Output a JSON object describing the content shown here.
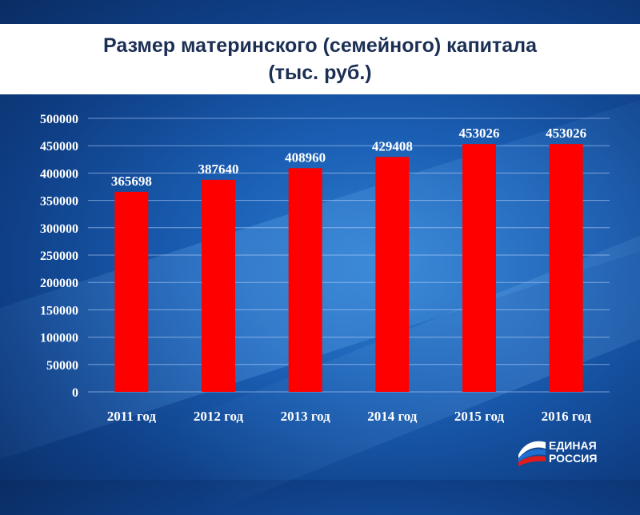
{
  "title_lines": [
    "Размер материнского (семейного) капитала",
    "(тыс. руб.)"
  ],
  "logo": {
    "line1": "ЕДИНАЯ",
    "line2": "РОССИЯ"
  },
  "colors": {
    "bar": "#ff0000",
    "title_text": "#1b2f54",
    "axis_text": "#ffffff"
  },
  "chart_data": {
    "type": "bar",
    "title": "Размер материнского (семейного) капитала (тыс. руб.)",
    "categories": [
      "2011 год",
      "2012 год",
      "2013 год",
      "2014 год",
      "2015 год",
      "2016 год"
    ],
    "values": [
      365698,
      387640,
      408960,
      429408,
      453026,
      453026
    ],
    "data_labels": [
      "365698",
      "387640",
      "408960",
      "429408",
      "453026",
      "453026"
    ],
    "yticks": [
      "0",
      "50000",
      "100000",
      "150000",
      "200000",
      "250000",
      "300000",
      "350000",
      "400000",
      "450000",
      "500000"
    ],
    "ylim": [
      0,
      500000
    ],
    "grid": true,
    "legend": "none"
  }
}
